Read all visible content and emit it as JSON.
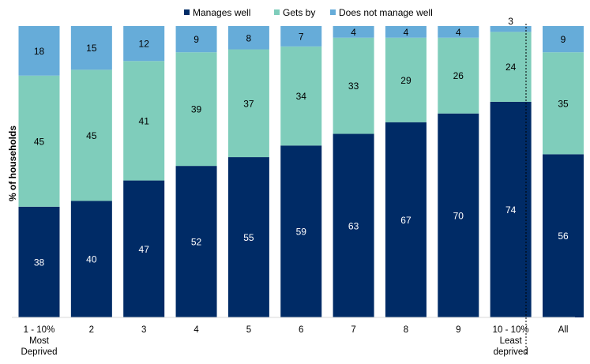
{
  "chart_data": {
    "type": "bar",
    "stacked": true,
    "title": "",
    "xlabel": "",
    "ylabel": "% of households",
    "ylim": [
      0,
      100
    ],
    "grid": false,
    "legend_position": "top",
    "categories": [
      [
        "1 - 10%",
        "Most",
        "Deprived"
      ],
      [
        "2"
      ],
      [
        "3"
      ],
      [
        "4"
      ],
      [
        "5"
      ],
      [
        "6"
      ],
      [
        "7"
      ],
      [
        "8"
      ],
      [
        "9"
      ],
      [
        "10 - 10%",
        "Least",
        "deprived"
      ],
      [
        "All"
      ]
    ],
    "separator_before_category": "All",
    "series": [
      {
        "name": "Manages well",
        "color": "#002B66",
        "label_color": "#ffffff",
        "values": [
          38,
          40,
          47,
          52,
          55,
          59,
          63,
          67,
          70,
          74,
          56
        ]
      },
      {
        "name": "Gets by",
        "color": "#7FCDBB",
        "label_color": "#000000",
        "values": [
          45,
          45,
          41,
          39,
          37,
          34,
          33,
          29,
          26,
          24,
          35
        ]
      },
      {
        "name": "Does not manage well",
        "color": "#66ACD9",
        "label_color": "#000000",
        "values": [
          18,
          15,
          12,
          9,
          8,
          7,
          4,
          4,
          4,
          3,
          9
        ]
      }
    ]
  }
}
